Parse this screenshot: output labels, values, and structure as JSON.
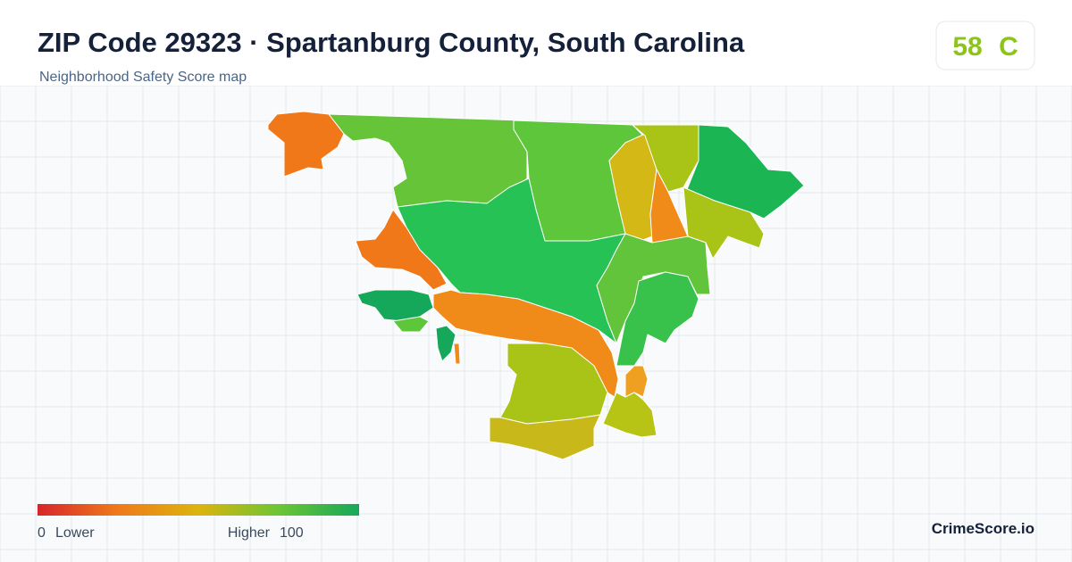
{
  "header": {
    "title": "ZIP Code 29323 · Spartanburg County, South Carolina",
    "subtitle": "Neighborhood Safety Score map"
  },
  "score": {
    "value": 58,
    "grade": "C"
  },
  "legend": {
    "min": 0,
    "min_label": "Lower",
    "max_label": "Higher",
    "max": 100
  },
  "brand": "CrimeScore.io"
}
